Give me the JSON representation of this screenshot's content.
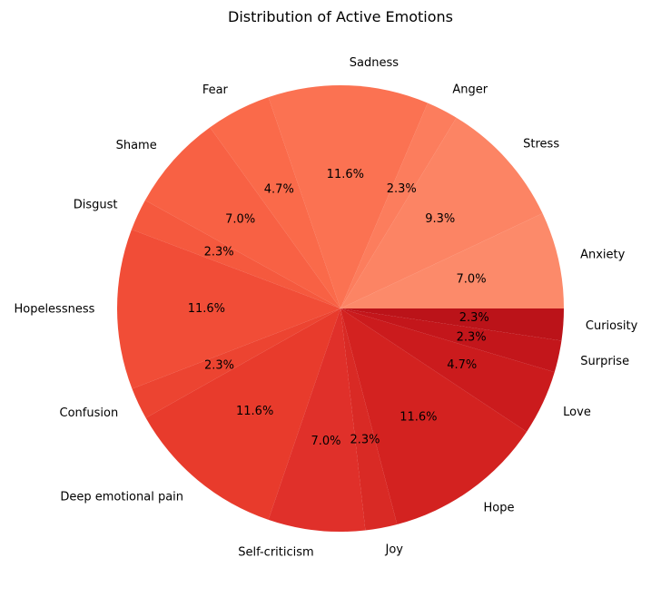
{
  "chart_data": {
    "type": "pie",
    "title": "Distribution of Active Emotions",
    "start_angle_deg": 0,
    "direction": "counterclockwise",
    "slices": [
      {
        "label": "Anxiety",
        "value": 7.0,
        "pct_label": "7.0%",
        "color": "#fc8a6a"
      },
      {
        "label": "Stress",
        "value": 9.3,
        "pct_label": "9.3%",
        "color": "#fc8464"
      },
      {
        "label": "Anger",
        "value": 2.3,
        "pct_label": "2.3%",
        "color": "#fc7d5d"
      },
      {
        "label": "Sadness",
        "value": 11.6,
        "pct_label": "11.6%",
        "color": "#fb7252"
      },
      {
        "label": "Fear",
        "value": 4.7,
        "pct_label": "4.7%",
        "color": "#fa6a4a"
      },
      {
        "label": "Shame",
        "value": 7.0,
        "pct_label": "7.0%",
        "color": "#f86144"
      },
      {
        "label": "Disgust",
        "value": 2.3,
        "pct_label": "2.3%",
        "color": "#f5593e"
      },
      {
        "label": "Hopelessness",
        "value": 11.6,
        "pct_label": "11.6%",
        "color": "#f14d37"
      },
      {
        "label": "Confusion",
        "value": 2.3,
        "pct_label": "2.3%",
        "color": "#ec4431"
      },
      {
        "label": "Deep emotional pain",
        "value": 11.6,
        "pct_label": "11.6%",
        "color": "#e83b2c"
      },
      {
        "label": "Self-criticism",
        "value": 7.0,
        "pct_label": "7.0%",
        "color": "#e0302a"
      },
      {
        "label": "Joy",
        "value": 2.3,
        "pct_label": "2.3%",
        "color": "#d92a25"
      },
      {
        "label": "Hope",
        "value": 11.6,
        "pct_label": "11.6%",
        "color": "#d32220"
      },
      {
        "label": "Love",
        "value": 4.7,
        "pct_label": "4.7%",
        "color": "#cb1b1d"
      },
      {
        "label": "Surprise",
        "value": 2.3,
        "pct_label": "2.3%",
        "color": "#c3161b"
      },
      {
        "label": "Curiosity",
        "value": 2.3,
        "pct_label": "2.3%",
        "color": "#bb1319"
      }
    ]
  }
}
